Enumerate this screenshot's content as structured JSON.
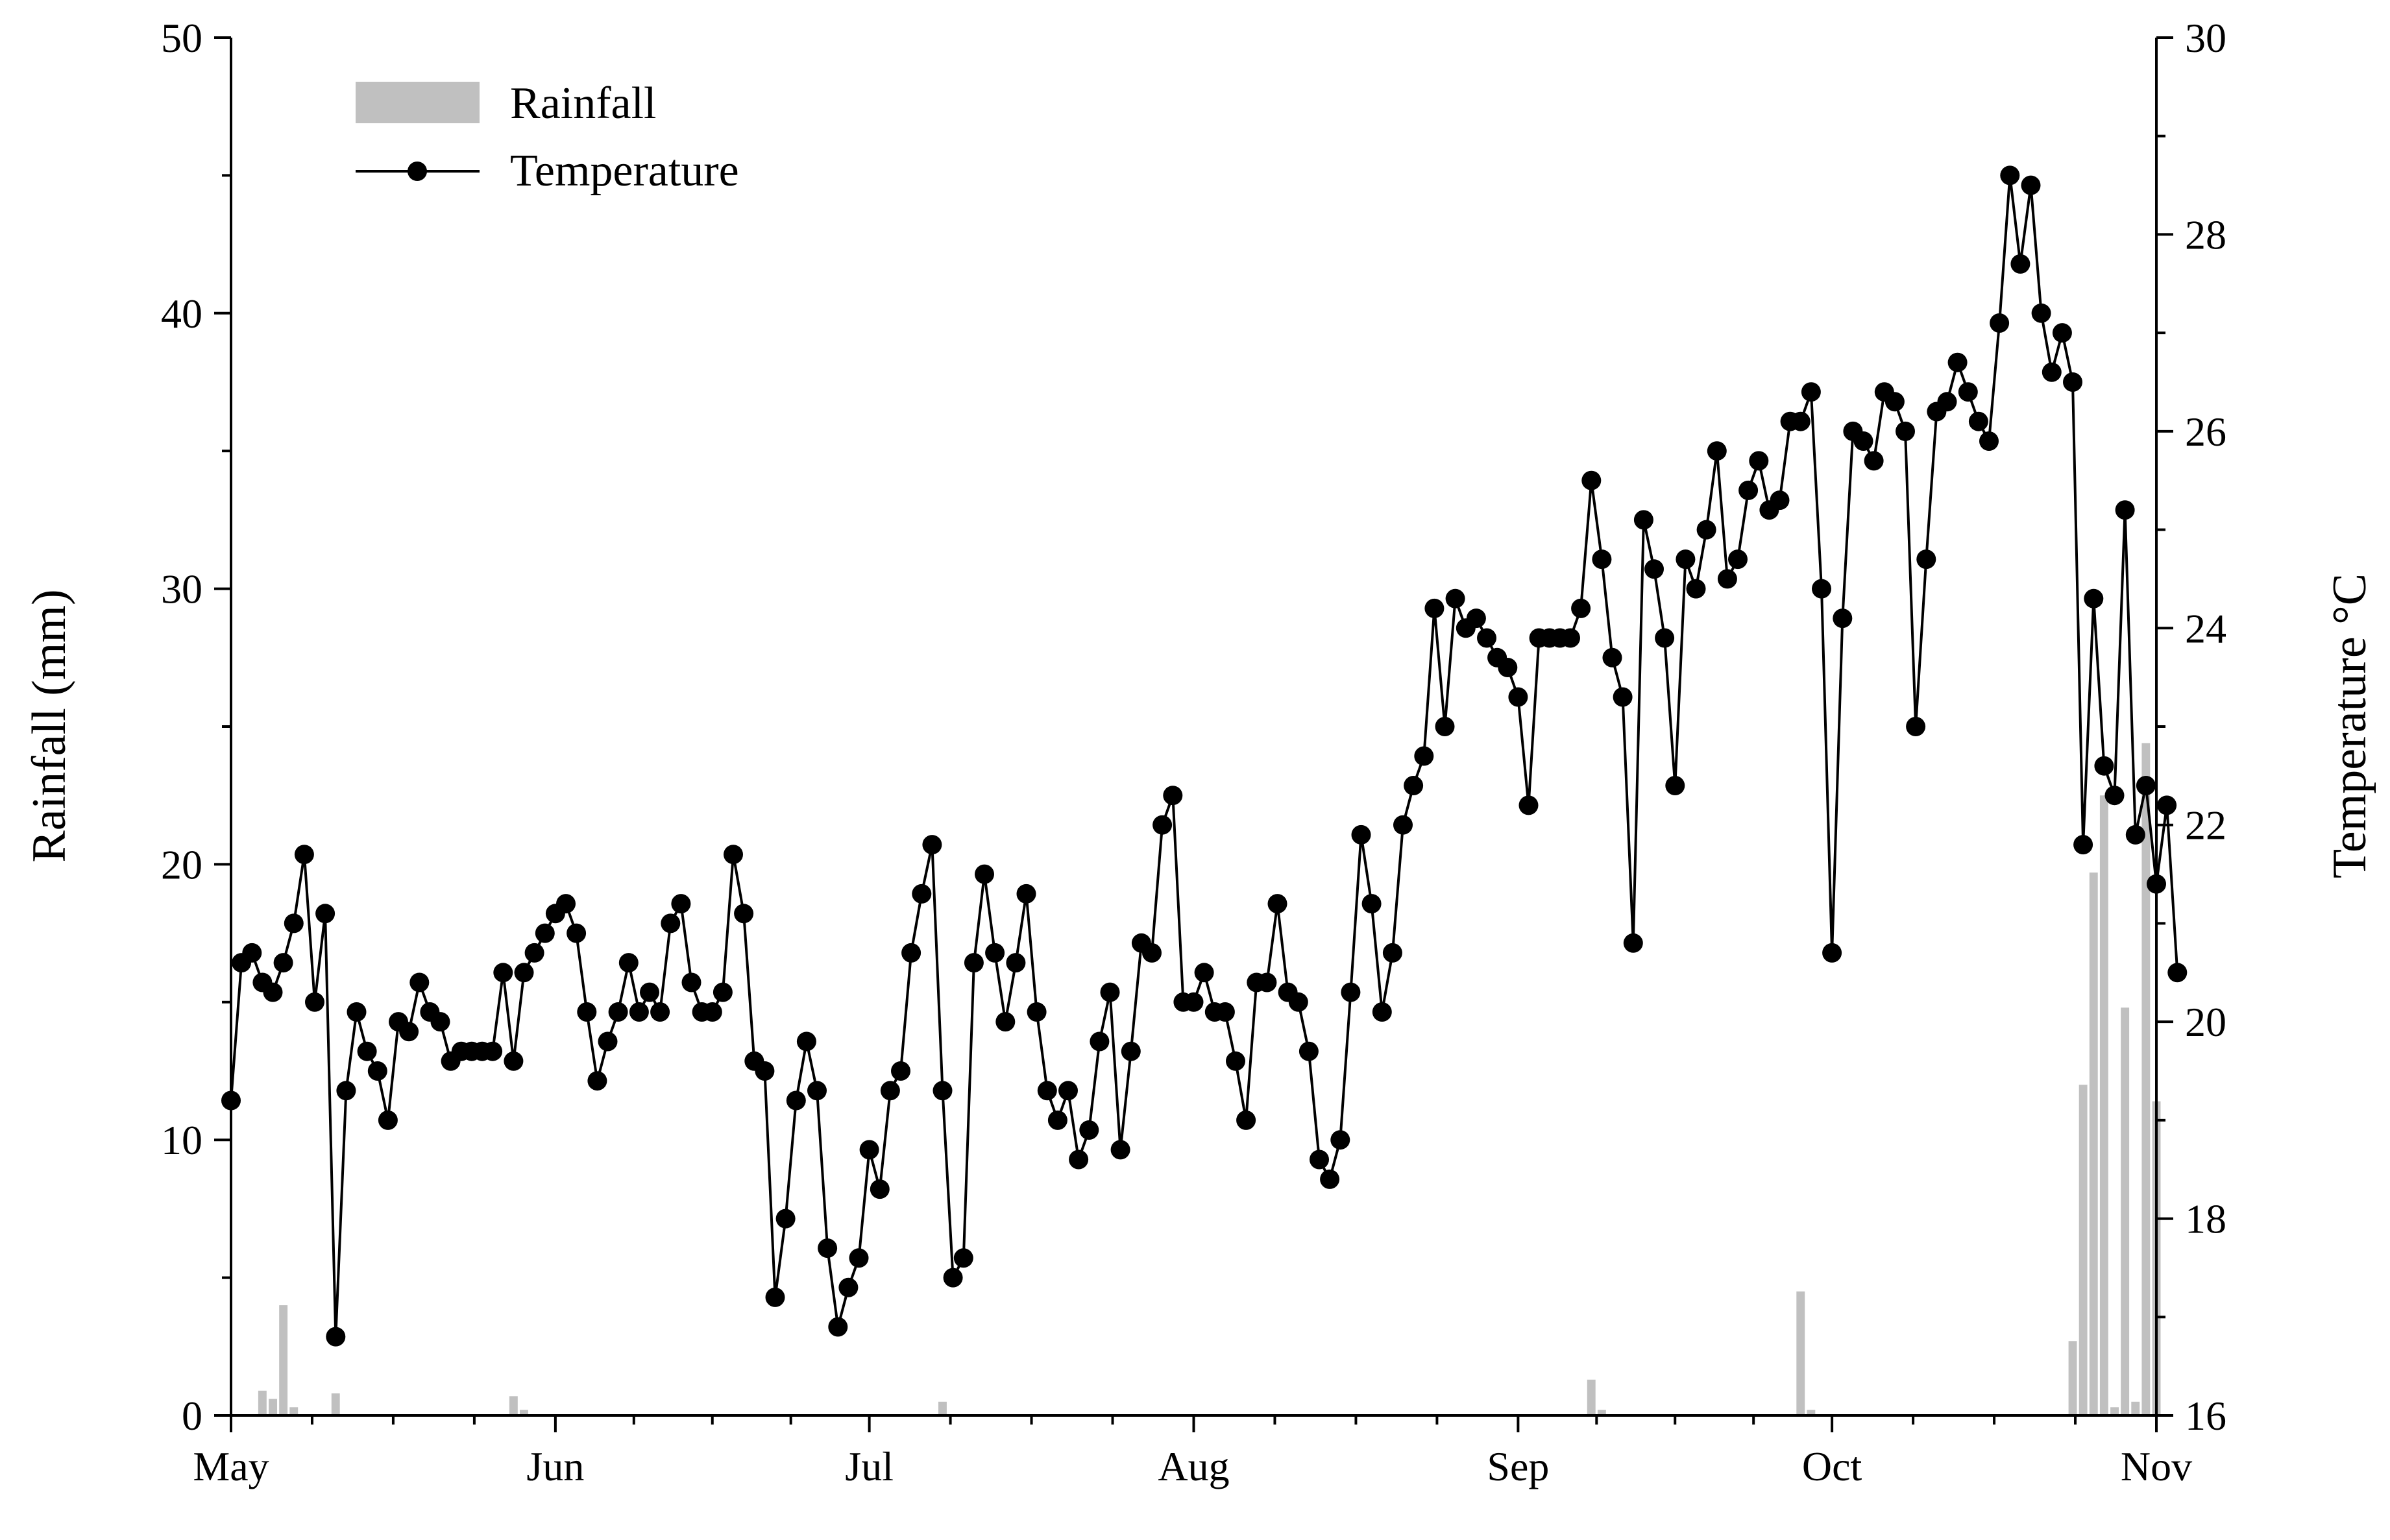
{
  "chart_data": {
    "type": "bar+line",
    "title": "",
    "x_axis": {
      "tick_labels": [
        "May",
        "Jun",
        "Jul",
        "Aug",
        "Sep",
        "Oct",
        "Nov"
      ],
      "tick_days": [
        0,
        31,
        61,
        92,
        123,
        153,
        184
      ],
      "xlim_days": [
        0,
        184
      ]
    },
    "y_left": {
      "label": "Rainfall (mm)",
      "ylim": [
        0,
        50
      ],
      "ticks": [
        0,
        10,
        20,
        30,
        40,
        50
      ]
    },
    "y_right": {
      "label": "Temperature °C",
      "ylim": [
        16,
        30
      ],
      "ticks": [
        16,
        18,
        20,
        22,
        24,
        26,
        28,
        30
      ]
    },
    "legend": {
      "placement": "top-left",
      "entries": [
        "Rainfall",
        "Temperature"
      ]
    },
    "colors": {
      "rainfall": "#c0c0c0",
      "temperature": "#000000"
    },
    "series": [
      {
        "name": "Rainfall",
        "type": "bar",
        "axis": "left",
        "points": [
          {
            "date": "2019-05-04",
            "value": 0.9
          },
          {
            "date": "2019-05-05",
            "value": 0.6
          },
          {
            "date": "2019-05-06",
            "value": 4.0
          },
          {
            "date": "2019-05-07",
            "value": 0.3
          },
          {
            "date": "2019-05-11",
            "value": 0.8
          },
          {
            "date": "2019-05-28",
            "value": 0.7
          },
          {
            "date": "2019-05-29",
            "value": 0.2
          },
          {
            "date": "2019-07-08",
            "value": 0.5
          },
          {
            "date": "2019-09-08",
            "value": 1.3
          },
          {
            "date": "2019-09-09",
            "value": 0.2
          },
          {
            "date": "2019-09-28",
            "value": 4.5
          },
          {
            "date": "2019-09-29",
            "value": 0.2
          },
          {
            "date": "2019-10-24",
            "value": 2.7
          },
          {
            "date": "2019-10-25",
            "value": 12.0
          },
          {
            "date": "2019-10-26",
            "value": 19.7
          },
          {
            "date": "2019-10-27",
            "value": 22.5
          },
          {
            "date": "2019-10-28",
            "value": 0.3
          },
          {
            "date": "2019-10-29",
            "value": 14.8
          },
          {
            "date": "2019-10-30",
            "value": 0.5
          },
          {
            "date": "2019-10-31",
            "value": 24.4
          },
          {
            "date": "2019-11-01",
            "value": 11.4
          }
        ]
      },
      {
        "name": "Temperature",
        "type": "line",
        "axis": "right",
        "start_date": "2019-05-01",
        "values": [
          19.2,
          20.6,
          20.7,
          20.4,
          20.3,
          20.6,
          21.0,
          21.7,
          20.2,
          21.1,
          16.8,
          19.3,
          20.1,
          19.7,
          19.5,
          19.0,
          20.0,
          19.9,
          20.4,
          20.1,
          20.0,
          19.6,
          19.7,
          19.7,
          19.7,
          19.7,
          20.5,
          19.6,
          20.5,
          20.7,
          20.9,
          21.1,
          21.2,
          20.9,
          20.1,
          19.4,
          19.8,
          20.1,
          20.6,
          20.1,
          20.3,
          20.1,
          21.0,
          21.2,
          20.4,
          20.1,
          20.1,
          20.3,
          21.7,
          21.1,
          19.6,
          19.5,
          17.2,
          18.0,
          19.2,
          19.8,
          19.3,
          17.7,
          16.9,
          17.3,
          17.6,
          18.7,
          18.3,
          19.3,
          19.5,
          20.7,
          21.3,
          21.8,
          19.3,
          17.4,
          17.6,
          20.6,
          21.5,
          20.7,
          20.0,
          20.6,
          21.3,
          20.1,
          19.3,
          19.0,
          19.3,
          18.6,
          18.9,
          19.8,
          20.3,
          18.7,
          19.7,
          20.8,
          20.7,
          22.0,
          22.3,
          20.2,
          20.2,
          20.5,
          20.1,
          20.1,
          19.6,
          19.0,
          20.4,
          20.4,
          21.2,
          20.3,
          20.2,
          19.7,
          18.6,
          18.4,
          18.8,
          20.3,
          21.9,
          21.2,
          20.1,
          20.7,
          22.0,
          22.4,
          22.7,
          24.2,
          23.0,
          24.3,
          24.0,
          24.1,
          23.9,
          23.7,
          23.6,
          23.3,
          22.2,
          23.9,
          23.9,
          23.9,
          23.9,
          24.2,
          25.5,
          24.7,
          23.7,
          23.3,
          20.8,
          25.1,
          24.6,
          23.9,
          22.4,
          24.7,
          24.4,
          25.0,
          25.8,
          24.5,
          24.7,
          25.4,
          25.7,
          25.2,
          25.3,
          26.1,
          26.1,
          26.4,
          24.4,
          20.7,
          24.1,
          26.0,
          25.9,
          25.7,
          26.4,
          26.3,
          26.0,
          23.0,
          24.7,
          26.2,
          26.3,
          26.7,
          26.4,
          26.1,
          25.9,
          27.1,
          28.6,
          27.7,
          28.5,
          27.2,
          26.6,
          27.0,
          26.5,
          21.8,
          24.3,
          22.6,
          22.3,
          25.2,
          21.9,
          22.4,
          21.4,
          22.2,
          20.5
        ]
      }
    ]
  }
}
